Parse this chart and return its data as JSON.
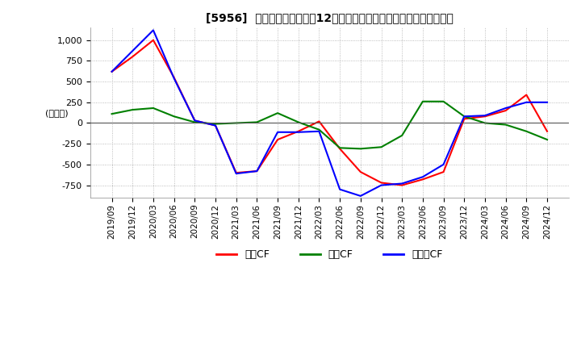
{
  "title": "[5956]  キャッシュフローの12か月移動合計の対前年同期増減額の推移",
  "ylabel": "(百万円)",
  "ylim": [
    -900,
    1150
  ],
  "yticks": [
    -750,
    -500,
    -250,
    0,
    250,
    500,
    750,
    1000
  ],
  "x_labels": [
    "2019/09",
    "2019/12",
    "2020/03",
    "2020/06",
    "2020/09",
    "2020/12",
    "2021/03",
    "2021/06",
    "2021/09",
    "2021/12",
    "2022/03",
    "2022/06",
    "2022/09",
    "2022/12",
    "2023/03",
    "2023/06",
    "2023/09",
    "2023/12",
    "2024/03",
    "2024/06",
    "2024/09",
    "2024/12"
  ],
  "operating_cf": [
    620,
    800,
    1000,
    550,
    30,
    -30,
    -600,
    -580,
    -200,
    -100,
    20,
    -310,
    -590,
    -720,
    -750,
    -680,
    -590,
    50,
    80,
    150,
    340,
    -100
  ],
  "investing_cf": [
    110,
    160,
    180,
    80,
    10,
    -10,
    0,
    10,
    120,
    10,
    -80,
    -300,
    -310,
    -290,
    -150,
    260,
    260,
    80,
    0,
    -20,
    -100,
    -200
  ],
  "free_cf": [
    620,
    870,
    1120,
    540,
    30,
    -30,
    -610,
    -580,
    -110,
    -110,
    -100,
    -800,
    -880,
    -750,
    -730,
    -650,
    -500,
    80,
    90,
    180,
    250,
    250
  ],
  "operating_color": "#FF0000",
  "investing_color": "#008000",
  "free_color": "#0000FF",
  "background_color": "#FFFFFF",
  "grid_color": "#AAAAAA",
  "legend_labels": [
    "営業CF",
    "投資CF",
    "フリーCF"
  ]
}
